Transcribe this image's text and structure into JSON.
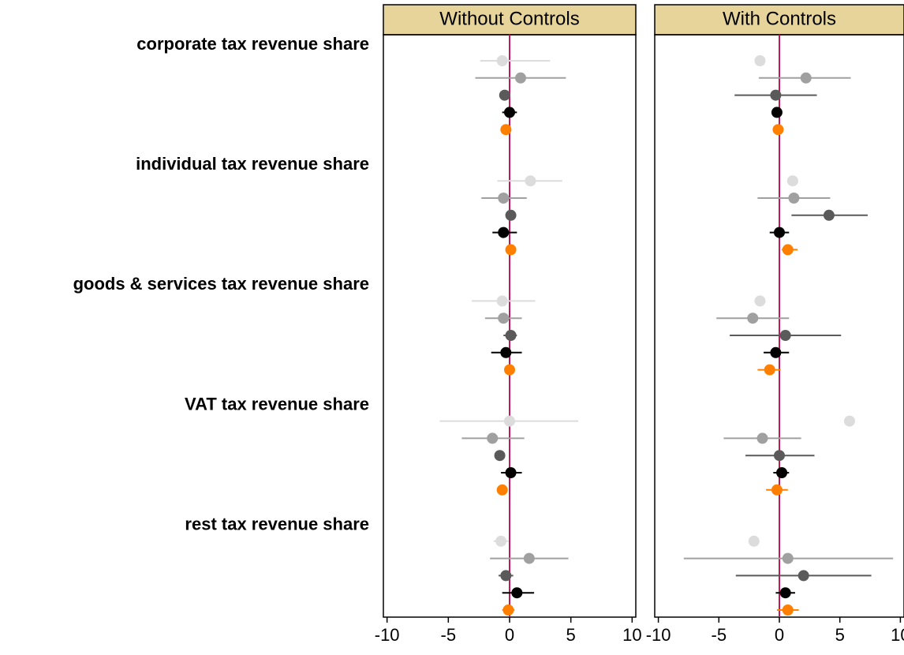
{
  "chart_data": {
    "type": "dot-whisker",
    "categories": [
      "corporate tax revenue share",
      "individual tax revenue share",
      "goods & services tax revenue share",
      "VAT tax revenue share",
      "rest tax revenue share"
    ],
    "xlim": [
      -10.3,
      10.3
    ],
    "xticks": [
      -10,
      -5,
      0,
      5,
      10
    ],
    "reference_line": 0,
    "reference_color": "#c2185b",
    "panels": [
      {
        "title": "Without Controls",
        "series": [
          {
            "color": "#dcdcdc",
            "values": [
              -0.6,
              1.7,
              -0.6,
              0.0,
              -0.7
            ],
            "lower": [
              -2.4,
              -1.0,
              -3.1,
              -5.7,
              -1.3
            ],
            "upper": [
              3.3,
              4.3,
              2.1,
              5.6,
              -0.1
            ]
          },
          {
            "color": "#a0a0a0",
            "values": [
              0.9,
              -0.5,
              -0.5,
              -1.4,
              1.6
            ],
            "lower": [
              -2.8,
              -2.3,
              -2.0,
              -3.9,
              -1.6
            ],
            "upper": [
              4.6,
              1.4,
              1.0,
              1.2,
              4.8
            ]
          },
          {
            "color": "#5a5a5a",
            "values": [
              -0.4,
              0.1,
              0.1,
              -0.8,
              -0.3
            ],
            "lower": [
              -0.6,
              -0.1,
              -0.5,
              -1.0,
              -0.9
            ],
            "upper": [
              -0.2,
              0.3,
              0.6,
              -0.6,
              0.3
            ]
          },
          {
            "color": "#000000",
            "values": [
              0.0,
              -0.5,
              -0.3,
              0.1,
              0.6
            ],
            "lower": [
              -0.6,
              -1.4,
              -1.5,
              -0.7,
              -0.6
            ],
            "upper": [
              0.6,
              0.6,
              1.0,
              1.0,
              2.0
            ]
          },
          {
            "color": "#ff7f00",
            "values": [
              -0.3,
              0.1,
              0.0,
              -0.6,
              -0.1
            ],
            "lower": [
              -0.5,
              -0.1,
              -0.2,
              -0.8,
              -0.6
            ],
            "upper": [
              -0.1,
              0.3,
              0.2,
              -0.4,
              0.4
            ]
          }
        ]
      },
      {
        "title": "With Controls",
        "series": [
          {
            "color": "#dcdcdc",
            "values": [
              -1.6,
              1.1,
              -1.6,
              5.8,
              -2.1
            ],
            "lower": [
              -1.8,
              0.9,
              -1.8,
              5.6,
              -2.3
            ],
            "upper": [
              -1.4,
              1.3,
              -1.4,
              6.0,
              -1.9
            ]
          },
          {
            "color": "#a0a0a0",
            "values": [
              2.2,
              1.2,
              -2.2,
              -1.4,
              0.7
            ],
            "lower": [
              -1.7,
              -1.8,
              -5.2,
              -4.6,
              -7.9
            ],
            "upper": [
              5.9,
              4.2,
              0.8,
              1.8,
              9.4
            ]
          },
          {
            "color": "#5a5a5a",
            "values": [
              -0.3,
              4.1,
              0.5,
              0.0,
              2.0
            ],
            "lower": [
              -3.7,
              1.0,
              -4.1,
              -2.8,
              -3.6
            ],
            "upper": [
              3.1,
              7.3,
              5.1,
              2.9,
              7.6
            ]
          },
          {
            "color": "#000000",
            "values": [
              -0.2,
              0.0,
              -0.3,
              0.2,
              0.5
            ],
            "lower": [
              -0.4,
              -0.8,
              -1.3,
              -0.5,
              -0.3
            ],
            "upper": [
              0.0,
              0.8,
              0.8,
              0.8,
              1.3
            ]
          },
          {
            "color": "#ff7f00",
            "values": [
              -0.1,
              0.7,
              -0.8,
              -0.2,
              0.7
            ],
            "lower": [
              -0.3,
              0.2,
              -1.8,
              -1.1,
              -0.2
            ],
            "upper": [
              0.1,
              1.5,
              0.1,
              0.7,
              1.6
            ]
          }
        ]
      }
    ]
  }
}
